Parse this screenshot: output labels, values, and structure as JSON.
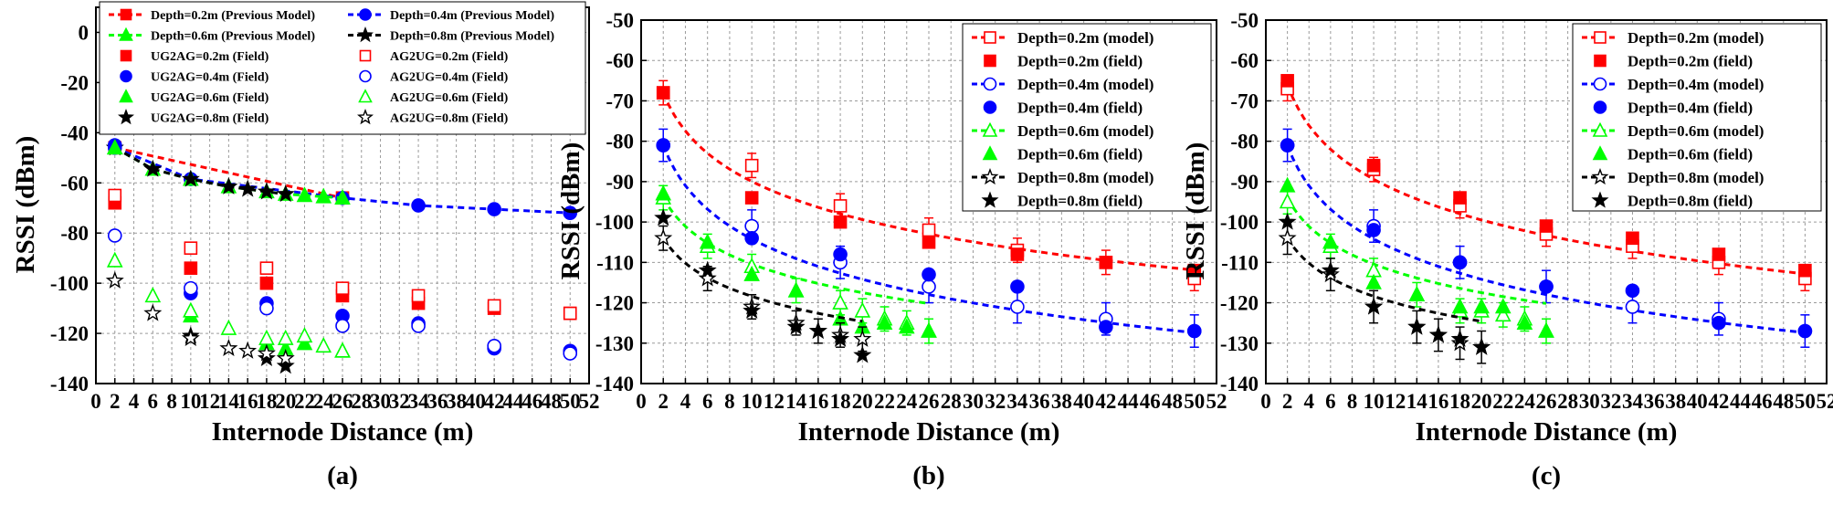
{
  "figure": {
    "xlabel": "Internode Distance (m)",
    "ylabel": "RSSI (dBm)",
    "x_ticks": [
      "0",
      "2",
      "4",
      "6",
      "8",
      "10",
      "12",
      "14",
      "16",
      "18",
      "20",
      "22",
      "24",
      "26",
      "28",
      "30",
      "32",
      "34",
      "36",
      "38",
      "40",
      "42",
      "44",
      "46",
      "48",
      "50",
      "52"
    ]
  },
  "chart_data": [
    {
      "type": "scatter",
      "panel_label": "(a)",
      "xlabel": "Internode Distance (m)",
      "ylabel": "RSSI (dBm)",
      "xlim": [
        0,
        52
      ],
      "ylim": [
        -140,
        10
      ],
      "y_ticks": [
        "0",
        "-20",
        "-40",
        "-60",
        "-80",
        "-100",
        "-120",
        "-140"
      ],
      "legend": [
        "Depth=0.2m (Previous Model)",
        "Depth=0.4m (Previous Model)",
        "Depth=0.6m (Previous Model)",
        "Depth=0.8m (Previous Model)",
        "UG2AG=0.2m (Field)",
        "AG2UG=0.2m (Field)",
        "UG2AG=0.4m (Field)",
        "AG2UG=0.4m (Field)",
        "UG2AG=0.6m (Field)",
        "AG2UG=0.6m (Field)",
        "UG2AG=0.8m (Field)",
        "AG2UG=0.8m (Field)"
      ],
      "series": [
        {
          "name": "Depth=0.2m (Previous Model)",
          "kind": "line",
          "color": "#ff0000",
          "marker": "square-filled",
          "x": [
            2,
            26
          ],
          "y": [
            -46,
            -66
          ]
        },
        {
          "name": "Depth=0.4m (Previous Model)",
          "kind": "line",
          "color": "#0000ff",
          "marker": "circle-filled",
          "x": [
            2,
            10,
            26,
            34,
            42,
            50
          ],
          "y": [
            -46,
            -58.5,
            -66,
            -69,
            -70.5,
            -72
          ]
        },
        {
          "name": "Depth=0.6m (Previous Model)",
          "kind": "line",
          "color": "#00ff00",
          "marker": "triangle-filled",
          "x": [
            2,
            6,
            10,
            14,
            18,
            20,
            22,
            24,
            26
          ],
          "y": [
            -46,
            -54.5,
            -58.5,
            -61.5,
            -63.5,
            -64.5,
            -65,
            -65.5,
            -66
          ]
        },
        {
          "name": "Depth=0.8m (Previous Model)",
          "kind": "line",
          "color": "#000000",
          "marker": "star-filled",
          "x": [
            2,
            6,
            10,
            14,
            16,
            18,
            20
          ],
          "y": [
            -46,
            -54.5,
            -58.5,
            -61.5,
            -62.5,
            -63.5,
            -64.5
          ]
        },
        {
          "name": "UG2AG=0.2m (Field)",
          "kind": "scatter",
          "color": "#ff0000",
          "marker": "square-filled",
          "x": [
            2,
            10,
            18,
            26,
            34,
            42,
            50
          ],
          "y": [
            -68,
            -94,
            -100,
            -105,
            -108,
            -110,
            -112
          ]
        },
        {
          "name": "AG2UG=0.2m (Field)",
          "kind": "scatter",
          "color": "#ff0000",
          "marker": "square-open",
          "x": [
            2,
            10,
            18,
            26,
            34,
            42,
            50
          ],
          "y": [
            -65,
            -86,
            -94,
            -102,
            -105,
            -109,
            -112
          ]
        },
        {
          "name": "UG2AG=0.4m (Field)",
          "kind": "scatter",
          "color": "#0000ff",
          "marker": "circle-filled",
          "x": [
            2,
            10,
            18,
            26,
            34,
            42,
            50
          ],
          "y": [
            -45,
            -104,
            -108,
            -113,
            -116,
            -126,
            -127
          ]
        },
        {
          "name": "AG2UG=0.4m (Field)",
          "kind": "scatter",
          "color": "#0000ff",
          "marker": "circle-open",
          "x": [
            2,
            10,
            18,
            26,
            34,
            42,
            50
          ],
          "y": [
            -81,
            -102,
            -110,
            -117,
            -117,
            -125,
            -128
          ]
        },
        {
          "name": "UG2AG=0.6m (Field)",
          "kind": "scatter",
          "color": "#00ff00",
          "marker": "triangle-filled",
          "x": [
            2,
            10,
            18,
            20,
            22,
            26
          ],
          "y": [
            -46,
            -113,
            -124,
            -126,
            -124,
            -127
          ]
        },
        {
          "name": "AG2UG=0.6m (Field)",
          "kind": "scatter",
          "color": "#00ff00",
          "marker": "triangle-open",
          "x": [
            2,
            6,
            10,
            14,
            18,
            20,
            22,
            24,
            26
          ],
          "y": [
            -91,
            -105,
            -111,
            -118,
            -122,
            -122,
            -121,
            -125,
            -127
          ]
        },
        {
          "name": "UG2AG=0.8m (Field)",
          "kind": "scatter",
          "color": "#000000",
          "marker": "star-filled",
          "x": [
            10,
            18,
            20
          ],
          "y": [
            -121,
            -130,
            -133
          ]
        },
        {
          "name": "AG2UG=0.8m (Field)",
          "kind": "scatter",
          "color": "#000000",
          "marker": "star-open",
          "x": [
            2,
            6,
            10,
            14,
            16,
            18,
            20
          ],
          "y": [
            -99,
            -112,
            -122,
            -126,
            -127,
            -128,
            -130
          ]
        }
      ]
    },
    {
      "type": "scatter",
      "panel_label": "(b)",
      "xlabel": "Internode Distance (m)",
      "ylabel": "RSSI (dBm)",
      "xlim": [
        0,
        52
      ],
      "ylim": [
        -140,
        -50
      ],
      "y_ticks": [
        "-50",
        "-60",
        "-70",
        "-80",
        "-90",
        "-100",
        "-110",
        "-120",
        "-130",
        "-140"
      ],
      "legend": [
        "Depth=0.2m (model)",
        "Depth=0.2m (field)",
        "Depth=0.4m (model)",
        "Depth=0.4m (field)",
        "Depth=0.6m (model)",
        "Depth=0.6m (field)",
        "Depth=0.8m (model)",
        "Depth=0.8m (field)"
      ],
      "series": [
        {
          "name": "Depth=0.2m (model)",
          "kind": "curve",
          "color": "#ff0000",
          "marker": "square-open",
          "a": -68,
          "b": -31.4,
          "xmax": 50,
          "points_x": [
            2,
            10,
            18,
            26,
            34,
            42,
            50
          ],
          "points_y": [
            -68,
            -86,
            -96,
            -102,
            -107,
            -110,
            -114
          ],
          "err": [
            3,
            3,
            3,
            3,
            3,
            3,
            3
          ]
        },
        {
          "name": "Depth=0.2m (field)",
          "kind": "scatter",
          "color": "#ff0000",
          "marker": "square-filled",
          "x": [
            2,
            10,
            18,
            26,
            34,
            42,
            50
          ],
          "y": [
            -68,
            -94,
            -100,
            -105,
            -108,
            -110,
            -112
          ]
        },
        {
          "name": "Depth=0.4m (model)",
          "kind": "curve",
          "color": "#0000ff",
          "marker": "circle-open",
          "a": -81,
          "b": -33.2,
          "xmax": 50,
          "points_x": [
            2,
            10,
            18,
            26,
            34,
            42,
            50
          ],
          "points_y": [
            -81,
            -101,
            -110,
            -116,
            -121,
            -124,
            -127
          ],
          "err": [
            4,
            4,
            4,
            4,
            4,
            4,
            4
          ]
        },
        {
          "name": "Depth=0.4m (field)",
          "kind": "scatter",
          "color": "#0000ff",
          "marker": "circle-filled",
          "x": [
            2,
            10,
            18,
            26,
            34,
            42,
            50
          ],
          "y": [
            -81,
            -104,
            -108,
            -113,
            -116,
            -126,
            -127
          ]
        },
        {
          "name": "Depth=0.6m (model)",
          "kind": "curve",
          "color": "#00ff00",
          "marker": "triangle-open",
          "a": -94,
          "b": -23.5,
          "xmax": 26,
          "points_x": [
            2,
            6,
            10,
            14,
            18,
            20,
            22,
            24,
            26
          ],
          "points_y": [
            -94,
            -106,
            -111,
            -117,
            -120,
            -122,
            -124,
            -125,
            -127
          ],
          "err": [
            3,
            3,
            3,
            3,
            3,
            3,
            3,
            3,
            3
          ]
        },
        {
          "name": "Depth=0.6m (field)",
          "kind": "scatter",
          "color": "#00ff00",
          "marker": "triangle-filled",
          "x": [
            2,
            6,
            10,
            14,
            18,
            20,
            22,
            24,
            26
          ],
          "y": [
            -93,
            -105,
            -113,
            -117,
            -124,
            -126,
            -125,
            -126,
            -127
          ]
        },
        {
          "name": "Depth=0.8m (model)",
          "kind": "curve",
          "color": "#000000",
          "marker": "star-open",
          "a": -104,
          "b": -20.6,
          "xmax": 20,
          "points_x": [
            2,
            6,
            10,
            14,
            16,
            18,
            20
          ],
          "points_y": [
            -104,
            -114,
            -121,
            -125,
            -127,
            -128,
            -129
          ],
          "err": [
            3,
            3,
            3,
            3,
            3,
            3,
            3
          ]
        },
        {
          "name": "Depth=0.8m (field)",
          "kind": "scatter",
          "color": "#000000",
          "marker": "star-filled",
          "x": [
            2,
            6,
            10,
            14,
            16,
            18,
            20
          ],
          "y": [
            -99,
            -112,
            -122,
            -126,
            -127,
            -129,
            -133
          ]
        }
      ]
    },
    {
      "type": "scatter",
      "panel_label": "(c)",
      "xlabel": "Internode Distance (m)",
      "ylabel": "RSSI (dBm)",
      "xlim": [
        0,
        52
      ],
      "ylim": [
        -140,
        -50
      ],
      "y_ticks": [
        "-50",
        "-60",
        "-70",
        "-80",
        "-90",
        "-100",
        "-110",
        "-120",
        "-130",
        "-140"
      ],
      "legend": [
        "Depth=0.2m (model)",
        "Depth=0.2m (field)",
        "Depth=0.4m (model)",
        "Depth=0.4m (field)",
        "Depth=0.6m (model)",
        "Depth=0.6m (field)",
        "Depth=0.8m (model)",
        "Depth=0.8m (field)"
      ],
      "series": [
        {
          "name": "Depth=0.2m (model)",
          "kind": "curve",
          "color": "#ff0000",
          "marker": "square-open",
          "a": -66,
          "b": -33.5,
          "xmax": 50,
          "points_x": [
            2,
            10,
            18,
            26,
            34,
            42,
            50
          ],
          "points_y": [
            -67,
            -87,
            -96,
            -103,
            -106,
            -110,
            -114
          ],
          "err": [
            3,
            3,
            3,
            3,
            3,
            3,
            3
          ]
        },
        {
          "name": "Depth=0.2m (field)",
          "kind": "scatter",
          "color": "#ff0000",
          "marker": "square-filled",
          "x": [
            2,
            10,
            18,
            26,
            34,
            42,
            50
          ],
          "y": [
            -65,
            -86,
            -94,
            -101,
            -104,
            -108,
            -112
          ]
        },
        {
          "name": "Depth=0.4m (model)",
          "kind": "curve",
          "color": "#0000ff",
          "marker": "circle-open",
          "a": -81,
          "b": -33.2,
          "xmax": 50,
          "points_x": [
            2,
            10,
            18,
            26,
            34,
            42,
            50
          ],
          "points_y": [
            -81,
            -101,
            -110,
            -116,
            -121,
            -124,
            -127
          ],
          "err": [
            4,
            4,
            4,
            4,
            4,
            4,
            4
          ]
        },
        {
          "name": "Depth=0.4m (field)",
          "kind": "scatter",
          "color": "#0000ff",
          "marker": "circle-filled",
          "x": [
            2,
            10,
            18,
            26,
            34,
            42,
            50
          ],
          "y": [
            -81,
            -102,
            -110,
            -116,
            -117,
            -125,
            -127
          ]
        },
        {
          "name": "Depth=0.6m (model)",
          "kind": "curve",
          "color": "#00ff00",
          "marker": "triangle-open",
          "a": -94,
          "b": -23.5,
          "xmax": 26,
          "points_x": [
            2,
            6,
            10,
            14,
            18,
            20,
            22,
            24,
            26
          ],
          "points_y": [
            -95,
            -106,
            -112,
            -118,
            -122,
            -122,
            -123,
            -124,
            -127
          ],
          "err": [
            3,
            3,
            3,
            3,
            3,
            3,
            3,
            3,
            3
          ]
        },
        {
          "name": "Depth=0.6m (field)",
          "kind": "scatter",
          "color": "#00ff00",
          "marker": "triangle-filled",
          "x": [
            2,
            6,
            10,
            14,
            18,
            20,
            22,
            24,
            26
          ],
          "y": [
            -91,
            -105,
            -115,
            -118,
            -121,
            -121,
            -121,
            -125,
            -127
          ]
        },
        {
          "name": "Depth=0.8m (model)",
          "kind": "curve",
          "color": "#000000",
          "marker": "star-open",
          "a": -104,
          "b": -20.6,
          "xmax": 20,
          "points_x": [
            2,
            6,
            10,
            14,
            16,
            18,
            20
          ],
          "points_y": [
            -104,
            -113,
            -121,
            -126,
            -128,
            -130,
            -131
          ],
          "err": [
            4,
            4,
            4,
            4,
            4,
            4,
            4
          ]
        },
        {
          "name": "Depth=0.8m (field)",
          "kind": "scatter",
          "color": "#000000",
          "marker": "star-filled",
          "x": [
            2,
            6,
            10,
            14,
            16,
            18,
            20
          ],
          "y": [
            -100,
            -112,
            -121,
            -126,
            -128,
            -129,
            -131
          ]
        }
      ]
    }
  ]
}
